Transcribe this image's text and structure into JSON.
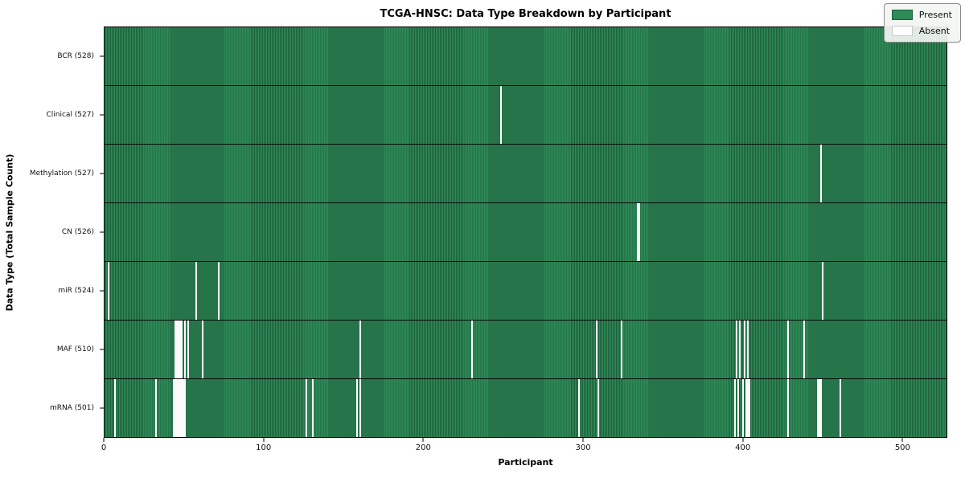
{
  "chart_data": {
    "type": "heatmap",
    "title": "TCGA-HNSC: Data Type Breakdown by Participant",
    "xlabel": "Participant",
    "ylabel": "Data Type (Total Sample Count)",
    "x_ticks": [
      0,
      100,
      200,
      300,
      400,
      500
    ],
    "xlim": [
      0,
      528
    ],
    "n_participants": 528,
    "grid": false,
    "legend_position": "upper right",
    "legend": [
      {
        "label": "Present",
        "color": "#2e8b57"
      },
      {
        "label": "Absent",
        "color": "#ffffff"
      }
    ],
    "colors": {
      "present": "#2e8b57",
      "present_dark_edge": "#1f5f3c",
      "absent": "#ffffff",
      "row_border": "#000000"
    },
    "rows": [
      {
        "label": "BCR (528)",
        "data_type": "BCR",
        "present_count": 528,
        "absent_participants": []
      },
      {
        "label": "Clinical (527)",
        "data_type": "Clinical",
        "present_count": 527,
        "absent_participants": [
          248
        ]
      },
      {
        "label": "Methylation (527)",
        "data_type": "Methylation",
        "present_count": 527,
        "absent_participants": [
          449
        ]
      },
      {
        "label": "CN (526)",
        "data_type": "CN",
        "present_count": 526,
        "absent_participants": [
          334,
          335
        ]
      },
      {
        "label": "miR (524)",
        "data_type": "miR",
        "present_count": 524,
        "absent_participants": [
          2,
          57,
          71,
          450
        ]
      },
      {
        "label": "MAF (510)",
        "data_type": "MAF",
        "present_count": 510,
        "absent_participants": [
          44,
          45,
          46,
          47,
          48,
          50,
          52,
          61,
          160,
          230,
          308,
          324,
          396,
          398,
          401,
          403,
          428,
          438
        ]
      },
      {
        "label": "mRNA (501)",
        "data_type": "mRNA",
        "present_count": 501,
        "absent_participants": [
          6,
          32,
          43,
          44,
          45,
          46,
          47,
          48,
          49,
          50,
          126,
          130,
          158,
          160,
          297,
          309,
          395,
          397,
          400,
          402,
          403,
          404,
          428,
          447,
          448,
          449,
          461
        ]
      }
    ]
  }
}
